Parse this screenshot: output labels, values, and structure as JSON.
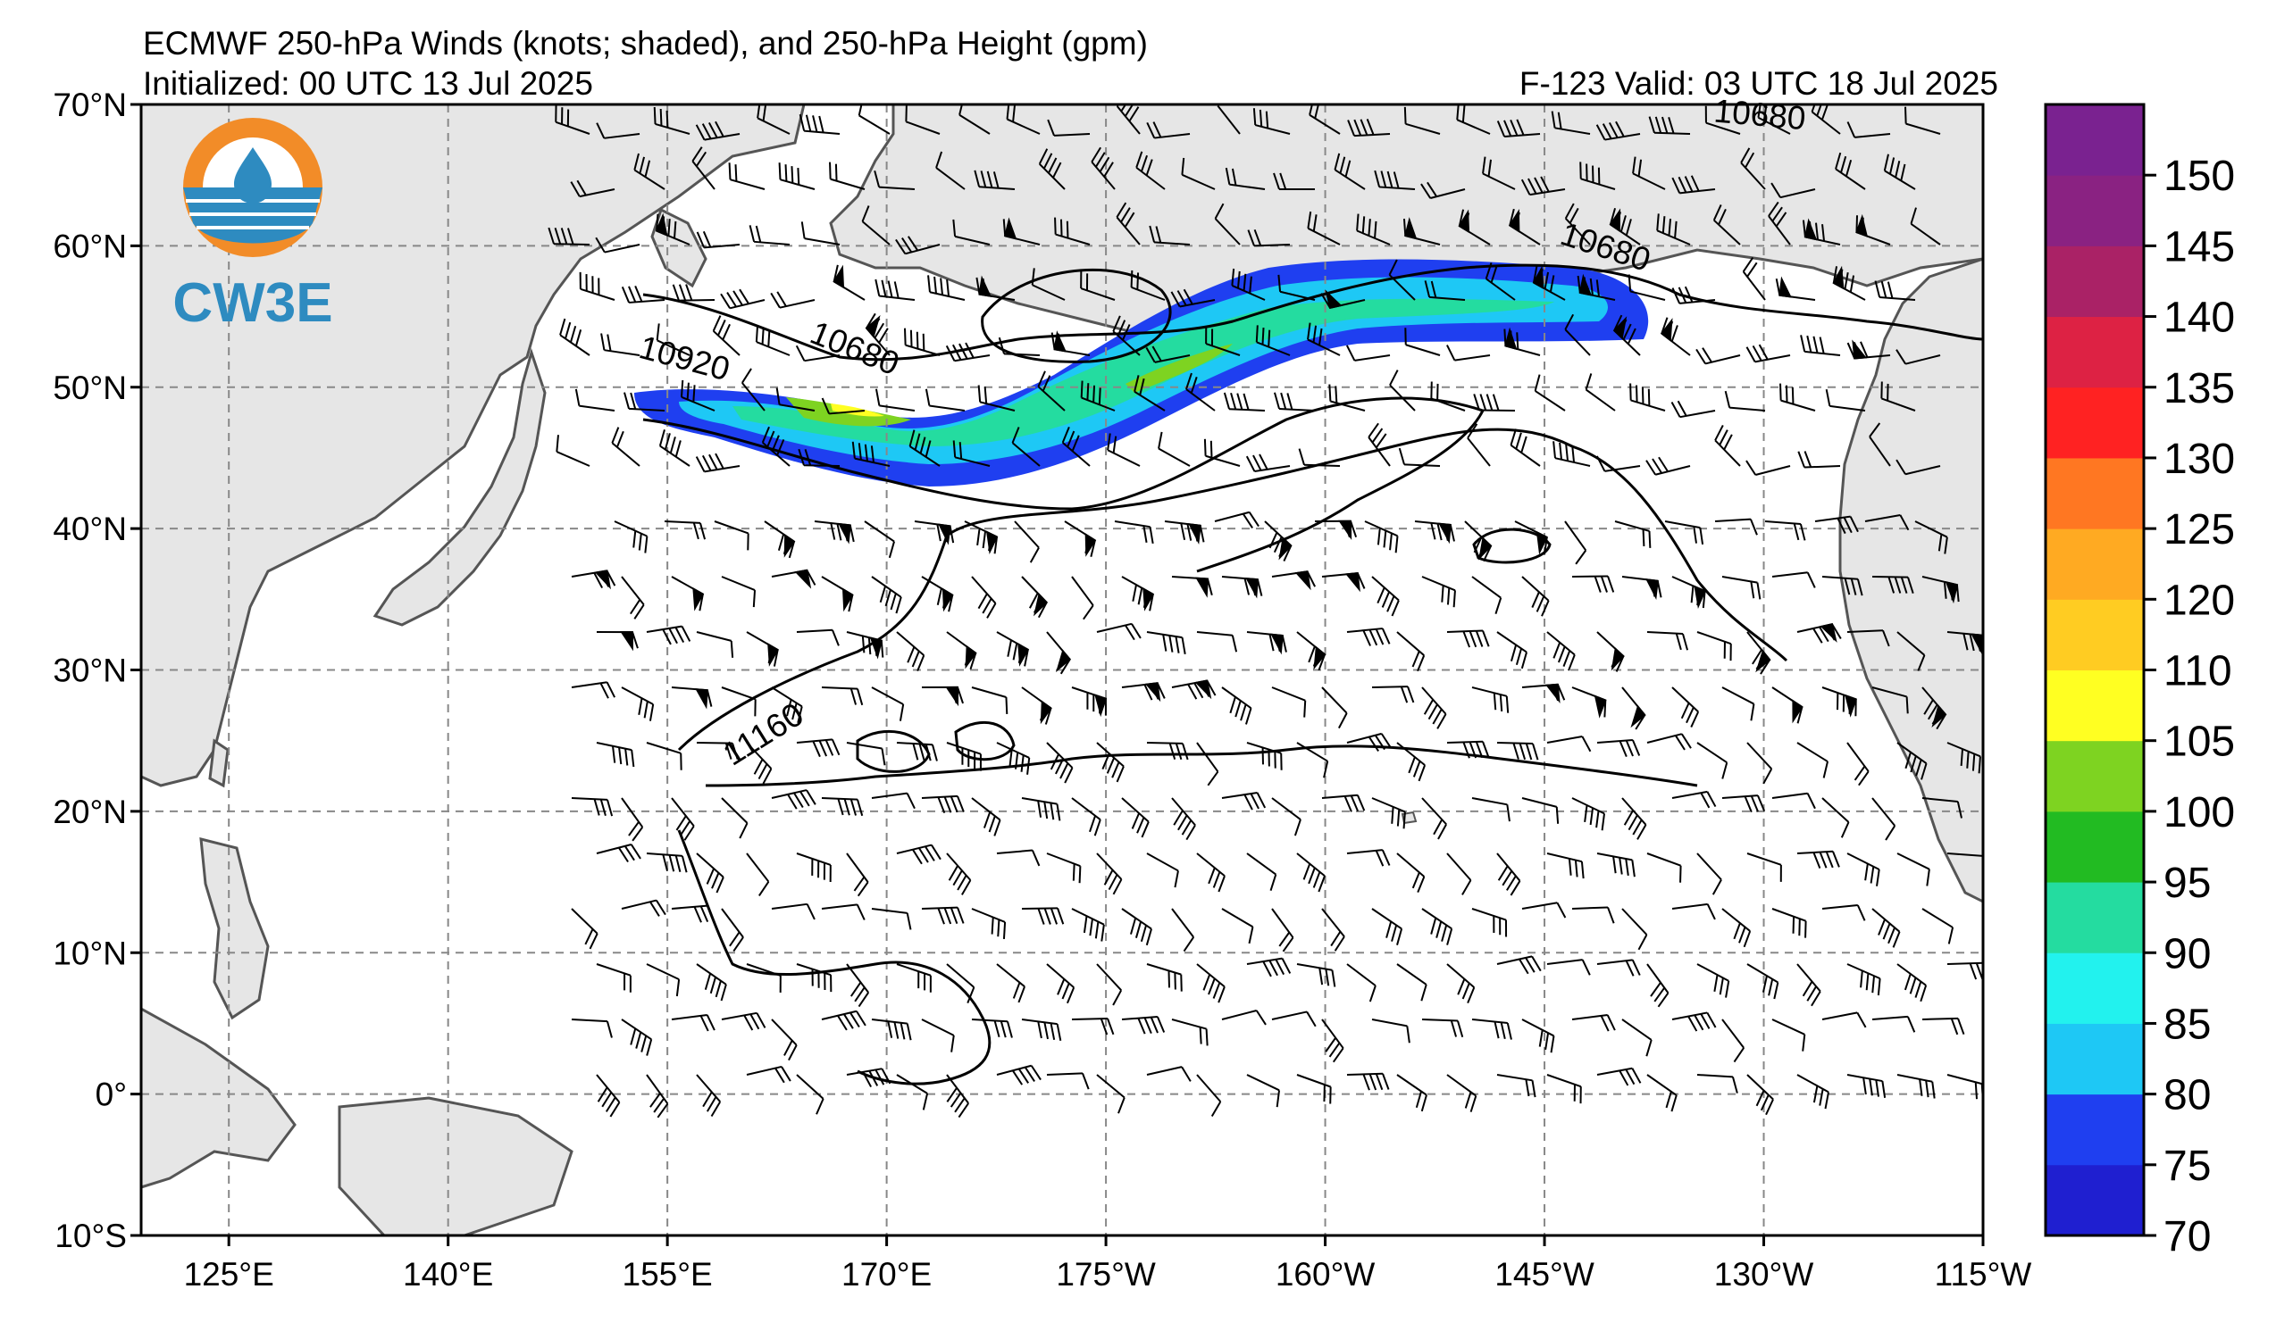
{
  "header": {
    "title": "ECMWF 250-hPa Winds (knots; shaded), and 250-hPa Height (gpm)",
    "initialized": "Initialized: 00 UTC 13 Jul 2025",
    "valid": "F-123  Valid: 03 UTC 18 Jul 2025"
  },
  "logo": {
    "text": "CW3E"
  },
  "map": {
    "lat_labels": [
      "70°N",
      "60°N",
      "50°N",
      "40°N",
      "30°N",
      "20°N",
      "10°N",
      "0°",
      "10°S"
    ],
    "lon_labels": [
      "125°E",
      "140°E",
      "155°E",
      "170°E",
      "175°W",
      "160°W",
      "145°W",
      "130°W",
      "115°W"
    ],
    "contour_labels": [
      "10920",
      "10680",
      "10680",
      "10680",
      "11160"
    ]
  },
  "colorbar": {
    "ticks": [
      "70",
      "75",
      "80",
      "85",
      "90",
      "95",
      "100",
      "105",
      "110",
      "120",
      "125",
      "130",
      "135",
      "140",
      "145",
      "150"
    ],
    "colors": [
      "#1f1fd0",
      "#1f3ff0",
      "#1ec8f5",
      "#22f2ee",
      "#24dca0",
      "#22bb22",
      "#7ed321",
      "#ffff22",
      "#ffcc22",
      "#ffaa22",
      "#ff7722",
      "#ff2222",
      "#dd2244",
      "#aa2266",
      "#8a2282",
      "#7a2290"
    ]
  },
  "style": {
    "land": "#e6e6e6",
    "coast": "#555555",
    "grid": "#888888",
    "logo_orange": "#f28c28",
    "logo_blue": "#2e8bc0"
  }
}
